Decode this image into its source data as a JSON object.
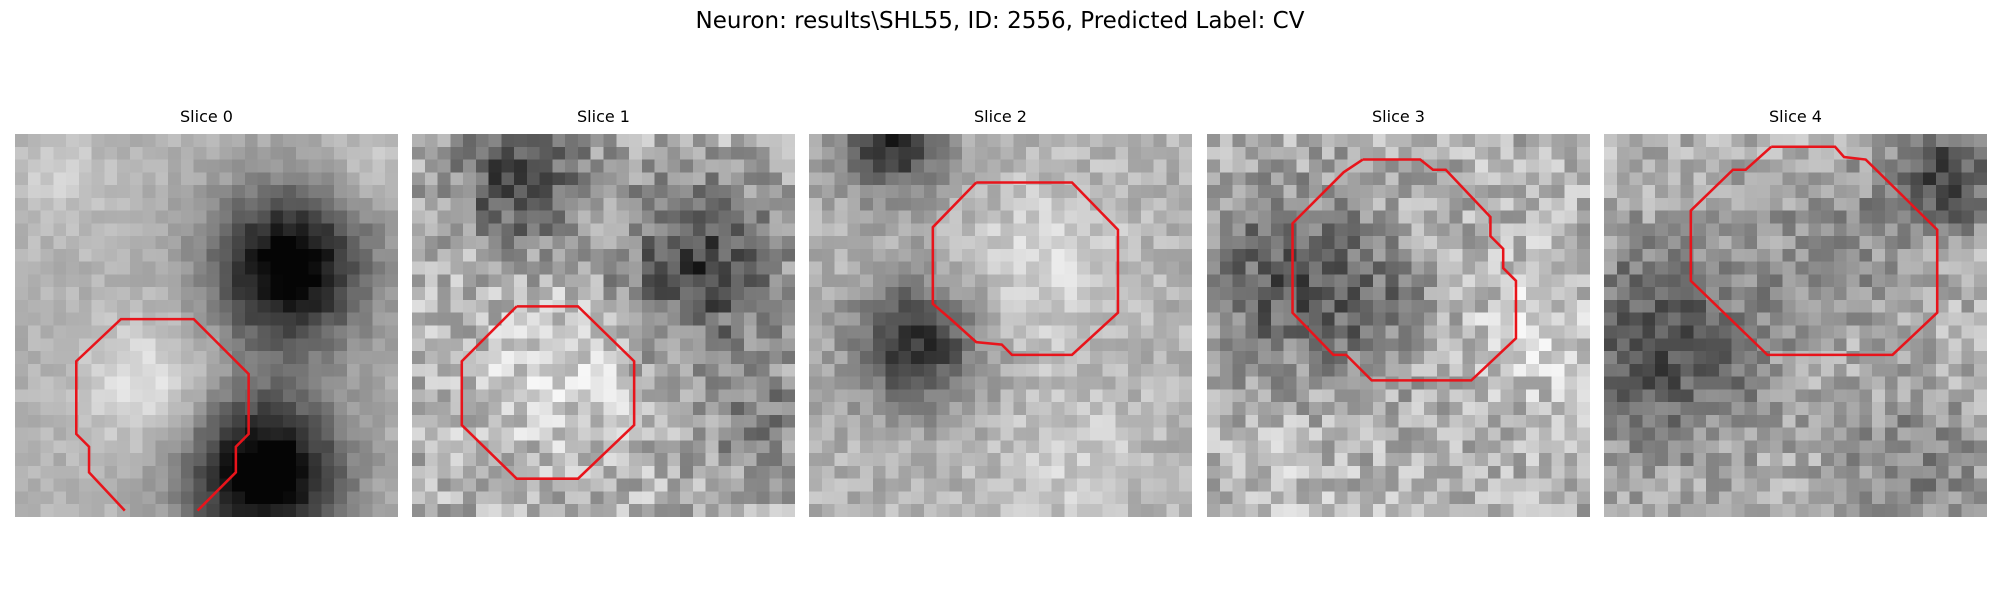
{
  "header": {
    "title": "Neuron: results\\SHL55, ID: 2556, Predicted Label: CV"
  },
  "panels": [
    {
      "title": "Slice 0"
    },
    {
      "title": "Slice 1"
    },
    {
      "title": "Slice 2"
    },
    {
      "title": "Slice 3"
    },
    {
      "title": "Slice 4"
    }
  ]
}
